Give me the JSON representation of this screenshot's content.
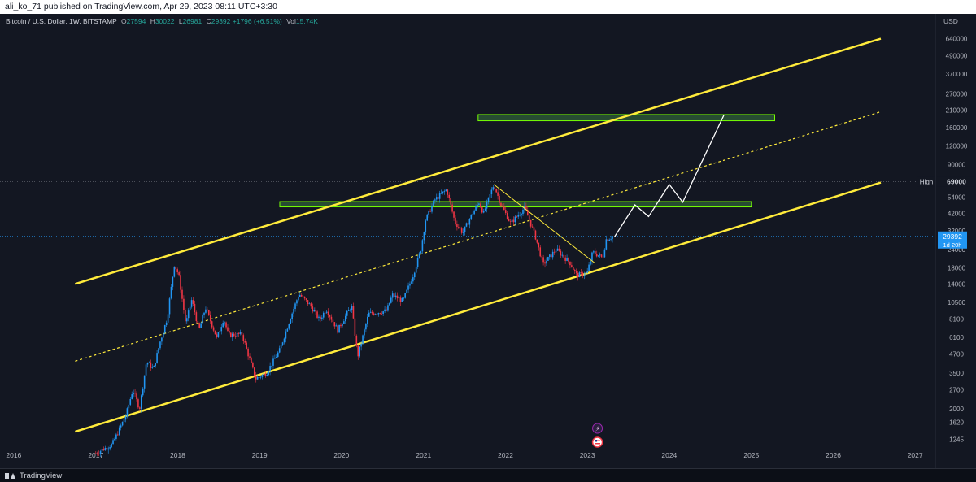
{
  "header": {
    "published_text": "ali_ko_71 published on TradingView.com, Apr 29, 2023 08:11 UTC+3:30"
  },
  "legend": {
    "symbol": "Bitcoin / U.S. Dollar, 1W, BITSTAMP",
    "open_label": "O",
    "open": "27594",
    "high_label": "H",
    "high": "30022",
    "low_label": "L",
    "low": "26981",
    "close_label": "C",
    "close": "29392",
    "change": "+1796 (+6.51%)",
    "vol_label": "Vol",
    "vol": "15.74K"
  },
  "footer": {
    "brand": "TradingView",
    "logo_icon": "tradingview-logo-icon"
  },
  "colors": {
    "background": "#131722",
    "up": "#2196f3",
    "down": "#f23645",
    "channel": "#ffeb3b",
    "zone": "#4caf50",
    "projection": "#ffffff"
  },
  "chart_data": {
    "type": "candlestick",
    "symbol": "BTCUSD",
    "interval": "1W",
    "y_scale": "log",
    "currency": "USD",
    "ylim": [
      900,
      750000
    ],
    "x_range": [
      "2015-11-01",
      "2027-04-01"
    ],
    "y_ticks": [
      640000,
      490000,
      370000,
      270000,
      210000,
      160000,
      120000,
      90000,
      69000,
      54000,
      42000,
      32000,
      24000,
      18000,
      14000,
      10500,
      8100,
      6100,
      4700,
      3500,
      2700,
      2000,
      1620,
      1245
    ],
    "x_ticks": [
      "2016",
      "2017",
      "2018",
      "2019",
      "2020",
      "2021",
      "2022",
      "2023",
      "2024",
      "2025",
      "2026",
      "2027"
    ],
    "price_series": [
      {
        "date": "2017-01-01",
        "price": 1000
      },
      {
        "date": "2017-03-15",
        "price": 1150
      },
      {
        "date": "2017-05-15",
        "price": 1800
      },
      {
        "date": "2017-06-15",
        "price": 2700
      },
      {
        "date": "2017-07-15",
        "price": 2000
      },
      {
        "date": "2017-08-15",
        "price": 4200
      },
      {
        "date": "2017-09-15",
        "price": 3700
      },
      {
        "date": "2017-10-15",
        "price": 5700
      },
      {
        "date": "2017-11-15",
        "price": 8200
      },
      {
        "date": "2017-12-17",
        "price": 19000
      },
      {
        "date": "2018-01-06",
        "price": 16000
      },
      {
        "date": "2018-02-06",
        "price": 7500
      },
      {
        "date": "2018-03-05",
        "price": 11000
      },
      {
        "date": "2018-04-06",
        "price": 6800
      },
      {
        "date": "2018-05-05",
        "price": 9700
      },
      {
        "date": "2018-06-25",
        "price": 6000
      },
      {
        "date": "2018-07-25",
        "price": 8200
      },
      {
        "date": "2018-08-15",
        "price": 6300
      },
      {
        "date": "2018-10-15",
        "price": 6400
      },
      {
        "date": "2018-11-20",
        "price": 4200
      },
      {
        "date": "2018-12-15",
        "price": 3200
      },
      {
        "date": "2019-02-01",
        "price": 3500
      },
      {
        "date": "2019-04-01",
        "price": 5000
      },
      {
        "date": "2019-05-15",
        "price": 8000
      },
      {
        "date": "2019-06-26",
        "price": 12000
      },
      {
        "date": "2019-08-15",
        "price": 10000
      },
      {
        "date": "2019-09-25",
        "price": 8000
      },
      {
        "date": "2019-10-25",
        "price": 9500
      },
      {
        "date": "2019-12-15",
        "price": 6800
      },
      {
        "date": "2020-02-15",
        "price": 10000
      },
      {
        "date": "2020-03-13",
        "price": 4500
      },
      {
        "date": "2020-05-01",
        "price": 8800
      },
      {
        "date": "2020-07-20",
        "price": 9200
      },
      {
        "date": "2020-08-15",
        "price": 11800
      },
      {
        "date": "2020-10-01",
        "price": 10700
      },
      {
        "date": "2020-11-15",
        "price": 16000
      },
      {
        "date": "2020-12-20",
        "price": 24000
      },
      {
        "date": "2021-01-10",
        "price": 38000
      },
      {
        "date": "2021-02-20",
        "price": 52000
      },
      {
        "date": "2021-04-14",
        "price": 61000
      },
      {
        "date": "2021-05-20",
        "price": 37000
      },
      {
        "date": "2021-06-25",
        "price": 31000
      },
      {
        "date": "2021-07-30",
        "price": 40000
      },
      {
        "date": "2021-09-05",
        "price": 50000
      },
      {
        "date": "2021-09-25",
        "price": 42000
      },
      {
        "date": "2021-11-10",
        "price": 66000
      },
      {
        "date": "2021-12-10",
        "price": 49000
      },
      {
        "date": "2022-01-24",
        "price": 36000
      },
      {
        "date": "2022-03-28",
        "price": 46000
      },
      {
        "date": "2022-05-15",
        "price": 29000
      },
      {
        "date": "2022-06-18",
        "price": 19000
      },
      {
        "date": "2022-08-15",
        "price": 24000
      },
      {
        "date": "2022-10-15",
        "price": 19500
      },
      {
        "date": "2022-11-15",
        "price": 16000
      },
      {
        "date": "2022-12-30",
        "price": 16500
      },
      {
        "date": "2023-01-25",
        "price": 23000
      },
      {
        "date": "2023-03-10",
        "price": 21000
      },
      {
        "date": "2023-03-25",
        "price": 28000
      },
      {
        "date": "2023-04-25",
        "price": 29392
      }
    ],
    "price_lines": [
      {
        "label": "High",
        "value": 69000,
        "value_label": "69000"
      },
      {
        "label": "",
        "value": 29392,
        "value_label": "29392",
        "sub_label": "1d 20h"
      }
    ],
    "channel": {
      "upper": [
        {
          "date": "2016-10-01",
          "price": 14000
        },
        {
          "date": "2026-08-01",
          "price": 640000
        }
      ],
      "mid": [
        {
          "date": "2016-10-01",
          "price": 4200
        },
        {
          "date": "2026-08-01",
          "price": 205000
        }
      ],
      "lower": [
        {
          "date": "2016-10-01",
          "price": 1400
        },
        {
          "date": "2026-08-01",
          "price": 68000
        }
      ]
    },
    "trendline": [
      {
        "date": "2021-11-10",
        "price": 66000
      },
      {
        "date": "2023-02-01",
        "price": 19500
      }
    ],
    "zones": [
      {
        "from": "2019-04-01",
        "to": "2025-01-01",
        "low": 46500,
        "high": 50500
      },
      {
        "from": "2021-09-01",
        "to": "2025-04-15",
        "low": 178000,
        "high": 196000
      }
    ],
    "projection": [
      {
        "date": "2023-05-01",
        "price": 29000
      },
      {
        "date": "2023-08-01",
        "price": 48000
      },
      {
        "date": "2023-10-01",
        "price": 40000
      },
      {
        "date": "2024-01-01",
        "price": 66000
      },
      {
        "date": "2024-03-01",
        "price": 50000
      },
      {
        "date": "2024-09-01",
        "price": 195000
      }
    ],
    "event_icons": [
      {
        "date": "2023-02-15",
        "icon": "lightning-icon"
      },
      {
        "date": "2023-02-15",
        "icon": "us-flag-icon"
      }
    ]
  }
}
